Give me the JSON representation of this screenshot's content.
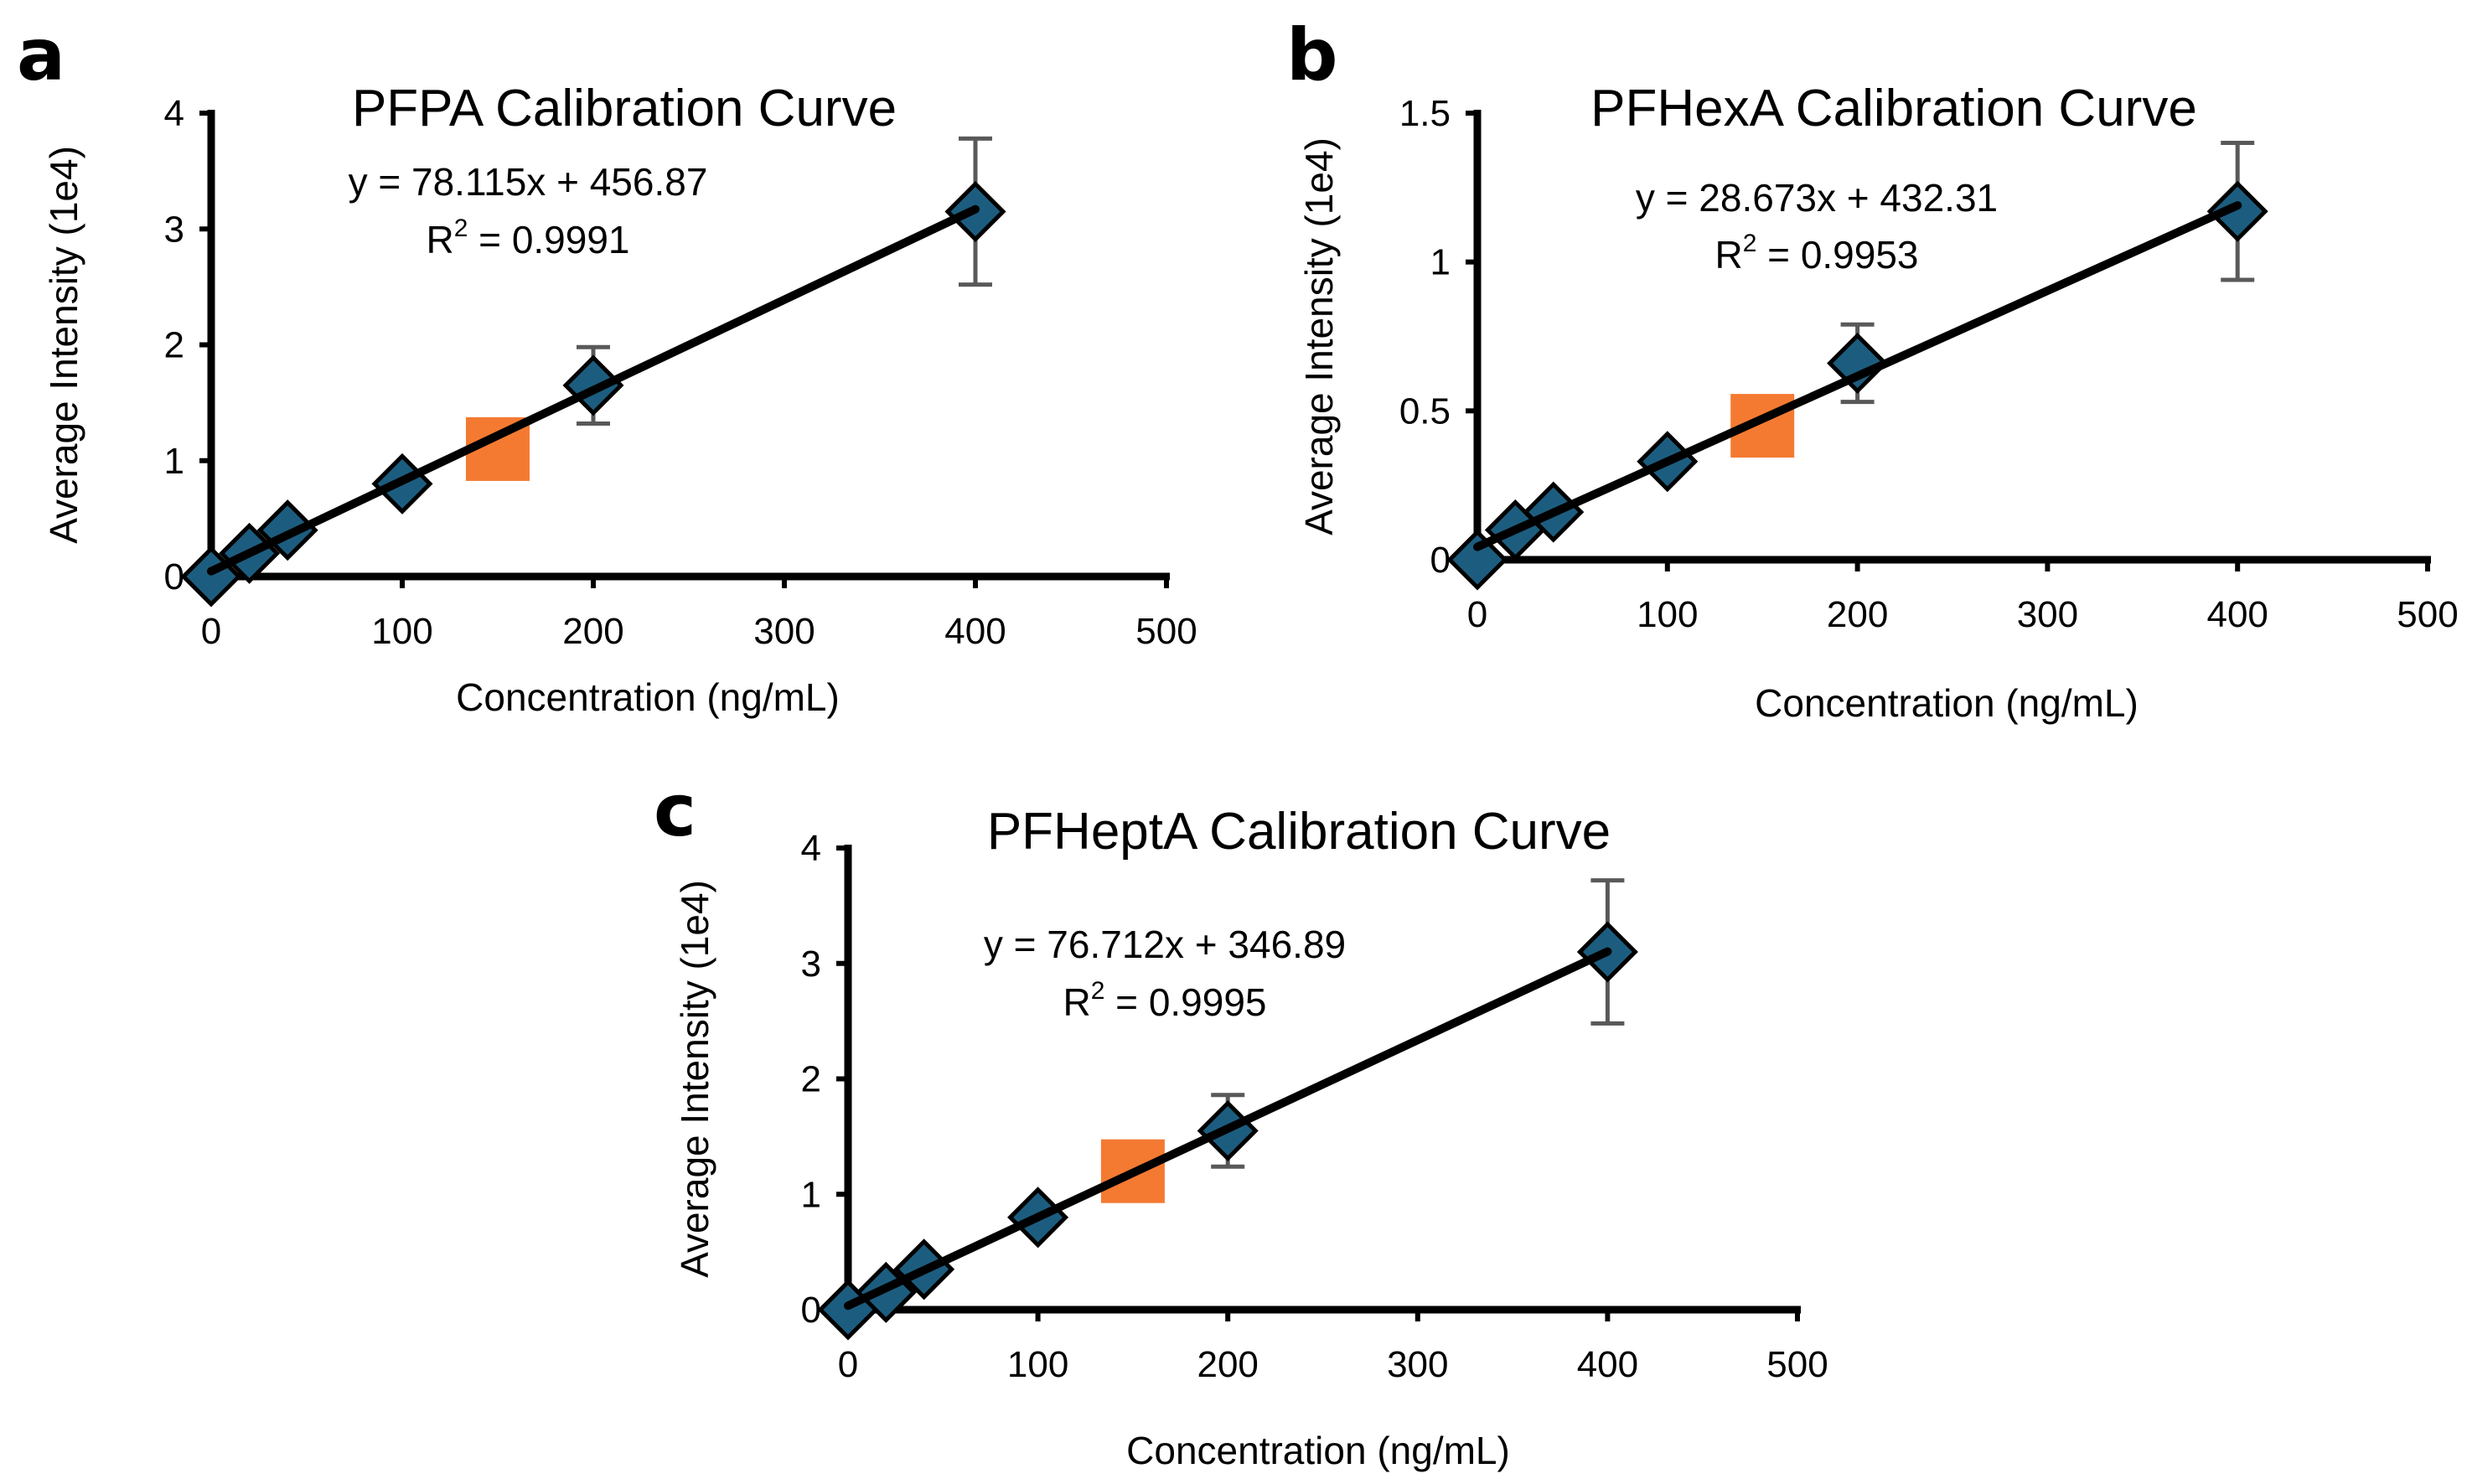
{
  "chart_data": [
    {
      "panel": "a",
      "type": "scatter",
      "title": "PFPA Calibration Curve",
      "xlabel": "Concentration (ng/mL)",
      "ylabel": "Average Intensity (1e4)",
      "xlim": [
        0,
        500
      ],
      "ylim": [
        0,
        4
      ],
      "x_ticks": [
        "0",
        "100",
        "200",
        "300",
        "400",
        "500"
      ],
      "y_ticks": [
        "0",
        "1",
        "2",
        "3",
        "4"
      ],
      "equation": "y = 78.115x + 456.87",
      "r_squared": "R",
      "r_squared_sup": "2",
      "r_squared_value": " = 0.9991",
      "trendline": {
        "slope": 0.0078115,
        "intercept": 0.045687
      },
      "series": [
        {
          "x": [
            0,
            20,
            40,
            100,
            200,
            400
          ],
          "y": [
            0.0,
            0.2,
            0.4,
            0.8,
            1.65,
            3.15
          ],
          "error": [
            0,
            0,
            0,
            0,
            0.33,
            0.63
          ]
        }
      ],
      "sample": {
        "x": 150,
        "y": 1.1
      },
      "colors": {
        "marker": "#1c5d7f",
        "sample": "#f47a32",
        "error": "#595959"
      }
    },
    {
      "panel": "b",
      "type": "scatter",
      "title": "PFHexA Calibration Curve",
      "xlabel": "Concentration (ng/mL)",
      "ylabel": "Average Intensity (1e4)",
      "xlim": [
        0,
        500
      ],
      "ylim": [
        0,
        1.5
      ],
      "x_ticks": [
        "0",
        "100",
        "200",
        "300",
        "400",
        "500"
      ],
      "y_ticks": [
        "0",
        "0.5",
        "1",
        "1.5"
      ],
      "equation": "y = 28.673x + 432.31",
      "r_squared": "R",
      "r_squared_sup": "2",
      "r_squared_value": " = 0.9953",
      "trendline": {
        "slope": 0.0028673,
        "intercept": 0.043231
      },
      "series": [
        {
          "x": [
            0,
            20,
            40,
            100,
            200,
            400
          ],
          "y": [
            0.0,
            0.1,
            0.16,
            0.33,
            0.66,
            1.17
          ],
          "error": [
            0,
            0,
            0,
            0,
            0.13,
            0.23
          ]
        }
      ],
      "sample": {
        "x": 150,
        "y": 0.45
      },
      "colors": {
        "marker": "#1c5d7f",
        "sample": "#f47a32",
        "error": "#595959"
      }
    },
    {
      "panel": "c",
      "type": "scatter",
      "title": "PFHeptA Calibration Curve",
      "xlabel": "Concentration (ng/mL)",
      "ylabel": "Average Intensity (1e4)",
      "xlim": [
        0,
        500
      ],
      "ylim": [
        0,
        4
      ],
      "x_ticks": [
        "0",
        "100",
        "200",
        "300",
        "400",
        "500"
      ],
      "y_ticks": [
        "0",
        "1",
        "2",
        "3",
        "4"
      ],
      "equation": "y = 76.712x + 346.89",
      "r_squared": "R",
      "r_squared_sup": "2",
      "r_squared_value": " = 0.9995",
      "trendline": {
        "slope": 0.0076712,
        "intercept": 0.034689
      },
      "series": [
        {
          "x": [
            0,
            20,
            40,
            100,
            200,
            400
          ],
          "y": [
            0.0,
            0.15,
            0.35,
            0.8,
            1.55,
            3.1
          ],
          "error": [
            0,
            0,
            0,
            0,
            0.31,
            0.62
          ]
        }
      ],
      "sample": {
        "x": 150,
        "y": 1.2
      },
      "colors": {
        "marker": "#1c5d7f",
        "sample": "#f47a32",
        "error": "#595959"
      }
    }
  ]
}
